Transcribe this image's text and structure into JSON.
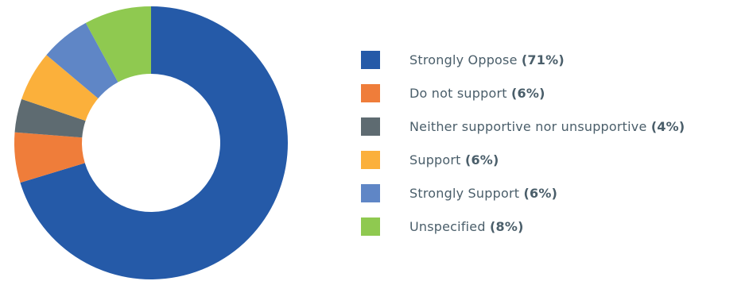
{
  "chart_data": {
    "type": "pie",
    "donut": true,
    "legend_position": "right",
    "series": [
      {
        "name": "Strongly Oppose",
        "label": "(71%)",
        "value": 71,
        "color": "#255aa8"
      },
      {
        "name": "Do not support",
        "label": "(6%)",
        "value": 6,
        "color": "#ef7d3a"
      },
      {
        "name": "Neither supportive nor unsupportive",
        "label": "(4%)",
        "value": 4,
        "color": "#5e6b71"
      },
      {
        "name": "Support",
        "label": "(6%)",
        "value": 6,
        "color": "#fbb03b"
      },
      {
        "name": "Strongly Support",
        "label": "(6%)",
        "value": 6,
        "color": "#5f86c6"
      },
      {
        "name": "Unspecified",
        "label": "(8%)",
        "value": 8,
        "color": "#8fc950"
      }
    ]
  }
}
